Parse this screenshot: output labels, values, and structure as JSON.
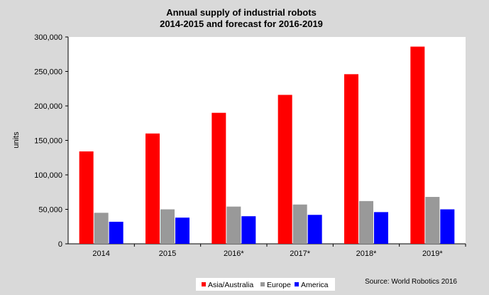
{
  "chart_data": {
    "type": "bar",
    "title": [
      "Annual supply of industrial robots",
      "2014-2015 and forecast for 2016-2019"
    ],
    "ylabel": "units",
    "xlabel": "",
    "categories": [
      "2014",
      "2015",
      "2016*",
      "2017*",
      "2018*",
      "2019*"
    ],
    "ylim": [
      0,
      300000
    ],
    "yticks": [
      "0",
      "50,000",
      "100,000",
      "150,000",
      "200,000",
      "250,000",
      "300,000"
    ],
    "ytick_values": [
      0,
      50000,
      100000,
      150000,
      200000,
      250000,
      300000
    ],
    "series": [
      {
        "name": "Asia/Australia",
        "color": "#ff0000",
        "values": [
          134000,
          160000,
          190000,
          216000,
          246000,
          286000
        ]
      },
      {
        "name": "Europe",
        "color": "#999999",
        "values": [
          45000,
          50000,
          54000,
          57000,
          62000,
          68000
        ]
      },
      {
        "name": "America",
        "color": "#0000ff",
        "values": [
          32000,
          38000,
          40000,
          42000,
          46000,
          50000
        ]
      }
    ],
    "grid": false,
    "legend_position": "bottom-center",
    "source": "Source: World Robotics 2016"
  }
}
